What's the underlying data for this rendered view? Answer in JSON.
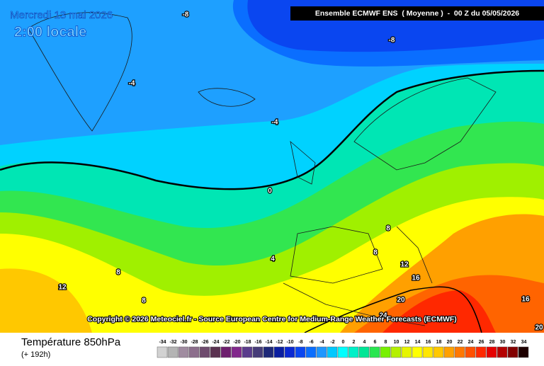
{
  "header": {
    "date": "Mercredi 13 mai 2026",
    "time": "2:00 locale",
    "model": "Ensemble ECMWF ENS  ( Moyenne )  -  00 Z du 05/05/2026"
  },
  "copyright": "Copyright © 2026 Meteociel.fr - Source European Centre for Medium-Range Weather Forecasts (ECMWF)",
  "footer": {
    "title": "Température 850hPa",
    "subtitle": "(+ 192h)"
  },
  "contour_labels": [
    -8,
    -8,
    -4,
    -4,
    0,
    4,
    8,
    8,
    8,
    8,
    12,
    12,
    16,
    16,
    20,
    24,
    20
  ],
  "legend": {
    "values": [
      -34,
      -32,
      -30,
      -28,
      -26,
      -24,
      -22,
      -20,
      -18,
      -16,
      -14,
      -12,
      -10,
      -8,
      -6,
      -4,
      -2,
      0,
      2,
      4,
      6,
      8,
      10,
      12,
      14,
      16,
      18,
      20,
      22,
      24,
      26,
      28,
      30,
      32,
      34
    ],
    "colors": [
      "#d2d2d2",
      "#b4b4b4",
      "#a08ca0",
      "#8c6e8c",
      "#6e4b6e",
      "#5a3250",
      "#6e1e6e",
      "#82288c",
      "#5a3c8c",
      "#463c78",
      "#1e2878",
      "#0a1ea0",
      "#0a28d2",
      "#0a46f0",
      "#0a6eff",
      "#1e96ff",
      "#00c8ff",
      "#00ffff",
      "#00f0c8",
      "#00e696",
      "#28e650",
      "#78f000",
      "#b4f000",
      "#e6f500",
      "#ffff00",
      "#ffe600",
      "#ffc800",
      "#ffa000",
      "#ff7800",
      "#ff5000",
      "#ff2800",
      "#e60000",
      "#b40000",
      "#820000",
      "#1e0000"
    ]
  }
}
